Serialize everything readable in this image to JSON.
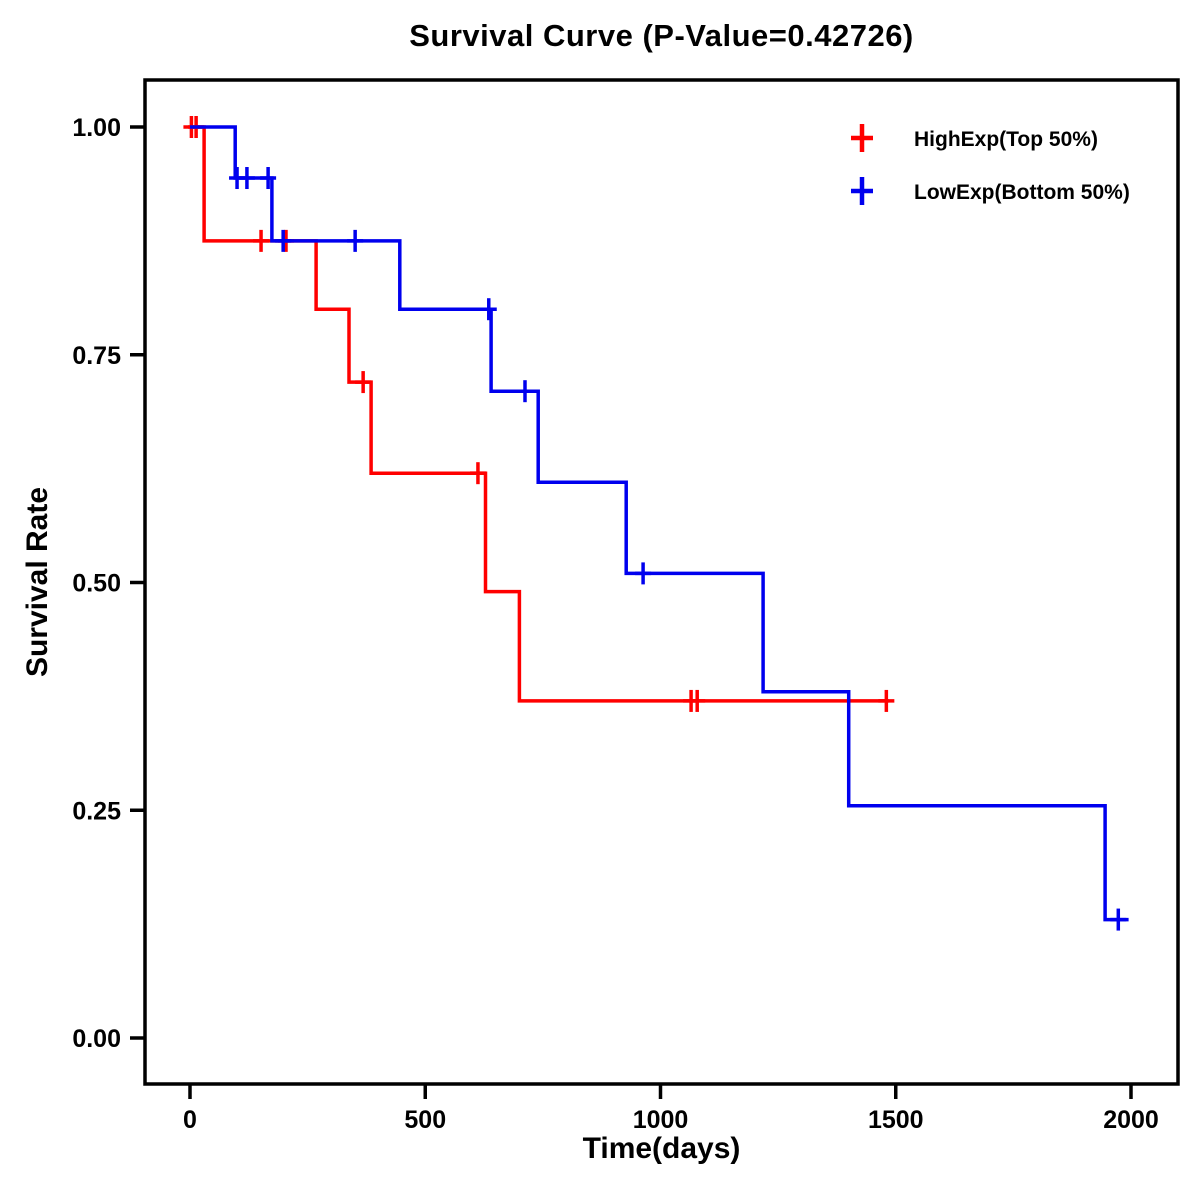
{
  "chart_data": {
    "type": "line",
    "subtype": "kaplan-meier-step",
    "title": "Survival Curve (P-Value=0.42726)",
    "xlabel": "Time(days)",
    "ylabel": "Survival Rate",
    "xlim": [
      0,
      2000
    ],
    "ylim": [
      0,
      1
    ],
    "xticks": [
      0,
      500,
      1000,
      1500,
      2000
    ],
    "xtick_labels": [
      "0",
      "500",
      "1000",
      "1500",
      "2000"
    ],
    "yticks": [
      1.0,
      0.75,
      0.5,
      0.25,
      0.0
    ],
    "ytick_labels": [
      "1.00",
      "0.75",
      "0.50",
      "0.25",
      "0.00"
    ],
    "grid": false,
    "legend_position": "top-right",
    "p_value": "0.42726",
    "series": [
      {
        "name": "HighExp(Top 50%)",
        "color": "#ff0000",
        "steps": [
          [
            0,
            1.0
          ],
          [
            30,
            0.875
          ],
          [
            268,
            0.8
          ],
          [
            338,
            0.72
          ],
          [
            385,
            0.62
          ],
          [
            628,
            0.49
          ],
          [
            700,
            0.37
          ],
          [
            1485,
            0.37
          ]
        ],
        "censors": [
          [
            3,
            1.0
          ],
          [
            13,
            1.0
          ],
          [
            151,
            0.875
          ],
          [
            204,
            0.875
          ],
          [
            368,
            0.72
          ],
          [
            612,
            0.62
          ],
          [
            1065,
            0.37
          ],
          [
            1078,
            0.37
          ],
          [
            1480,
            0.37
          ]
        ]
      },
      {
        "name": "LowExp(Bottom 50%)",
        "color": "#0000ee",
        "steps": [
          [
            0,
            1.0
          ],
          [
            96,
            0.944
          ],
          [
            174,
            0.875
          ],
          [
            446,
            0.8
          ],
          [
            640,
            0.71
          ],
          [
            740,
            0.61
          ],
          [
            927,
            0.51
          ],
          [
            1218,
            0.38
          ],
          [
            1400,
            0.255
          ],
          [
            1945,
            0.13
          ],
          [
            1995,
            0.13
          ]
        ],
        "censors": [
          [
            100,
            0.944
          ],
          [
            121,
            0.944
          ],
          [
            166,
            0.944
          ],
          [
            198,
            0.875
          ],
          [
            351,
            0.875
          ],
          [
            635,
            0.8
          ],
          [
            712,
            0.71
          ],
          [
            963,
            0.51
          ],
          [
            1973,
            0.13
          ]
        ]
      }
    ]
  }
}
